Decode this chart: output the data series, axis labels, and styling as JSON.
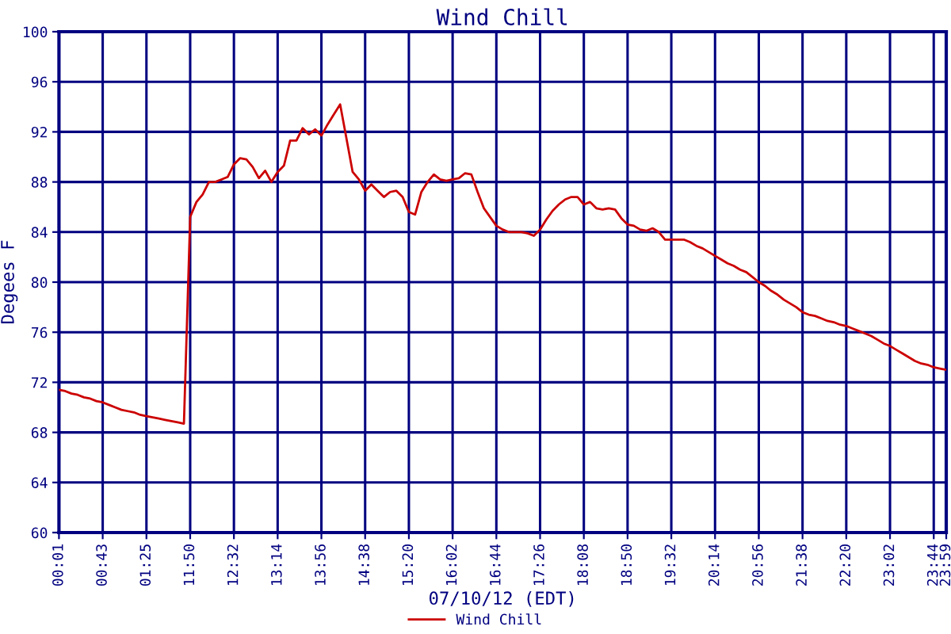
{
  "chart_data": {
    "type": "line",
    "title": "Wind Chill",
    "xlabel": "07/10/12 (EDT)",
    "ylabel": "Degees F",
    "categories": [
      "00:01",
      null,
      null,
      null,
      null,
      null,
      null,
      "00:43",
      null,
      null,
      null,
      null,
      null,
      null,
      "01:25",
      null,
      null,
      null,
      null,
      null,
      null,
      "11:50",
      null,
      null,
      null,
      null,
      null,
      null,
      "12:32",
      null,
      null,
      null,
      null,
      null,
      null,
      "13:14",
      null,
      null,
      null,
      null,
      null,
      null,
      "13:56",
      null,
      null,
      null,
      null,
      null,
      null,
      "14:38",
      null,
      null,
      null,
      null,
      null,
      null,
      "15:20",
      null,
      null,
      null,
      null,
      null,
      null,
      "16:02",
      null,
      null,
      null,
      null,
      null,
      null,
      "16:44",
      null,
      null,
      null,
      null,
      null,
      null,
      "17:26",
      null,
      null,
      null,
      null,
      null,
      null,
      "18:08",
      null,
      null,
      null,
      null,
      null,
      null,
      "18:50",
      null,
      null,
      null,
      null,
      null,
      null,
      "19:32",
      null,
      null,
      null,
      null,
      null,
      null,
      "20:14",
      null,
      null,
      null,
      null,
      null,
      null,
      "20:56",
      null,
      null,
      null,
      null,
      null,
      null,
      "21:38",
      null,
      null,
      null,
      null,
      null,
      null,
      "22:20",
      null,
      null,
      null,
      null,
      null,
      null,
      "23:02",
      null,
      null,
      null,
      null,
      null,
      null,
      "23:44",
      null,
      "23:59"
    ],
    "series": [
      {
        "name": "Wind Chill",
        "color": "#cc0000",
        "values": [
          71.4,
          71.3,
          71.1,
          71.0,
          70.8,
          70.7,
          70.5,
          70.4,
          70.2,
          70.0,
          69.8,
          69.7,
          69.6,
          69.4,
          69.3,
          69.2,
          69.1,
          69.0,
          68.9,
          68.8,
          68.7,
          85.2,
          86.4,
          87.0,
          88.0,
          88.0,
          88.2,
          88.4,
          89.4,
          89.9,
          89.8,
          89.2,
          88.3,
          88.9,
          88.0,
          88.8,
          89.3,
          91.3,
          91.3,
          92.3,
          91.8,
          92.2,
          91.7,
          92.6,
          93.4,
          94.2,
          91.5,
          88.8,
          88.2,
          87.3,
          87.8,
          87.3,
          86.8,
          87.2,
          87.3,
          86.8,
          85.6,
          85.4,
          87.2,
          88.0,
          88.6,
          88.2,
          88.1,
          88.2,
          88.3,
          88.7,
          88.6,
          87.2,
          85.9,
          85.2,
          84.5,
          84.2,
          84.0,
          84.0,
          84.0,
          83.9,
          83.7,
          84.2,
          85.0,
          85.7,
          86.2,
          86.6,
          86.8,
          86.8,
          86.2,
          86.4,
          85.9,
          85.8,
          85.9,
          85.8,
          85.1,
          84.6,
          84.5,
          84.2,
          84.1,
          84.3,
          84.0,
          83.4,
          83.4,
          83.4,
          83.4,
          83.2,
          82.9,
          82.7,
          82.4,
          82.1,
          81.8,
          81.5,
          81.3,
          81.0,
          80.8,
          80.4,
          80.0,
          79.7,
          79.3,
          79.0,
          78.6,
          78.3,
          78.0,
          77.6,
          77.4,
          77.3,
          77.1,
          76.9,
          76.8,
          76.6,
          76.5,
          76.3,
          76.1,
          75.9,
          75.7,
          75.4,
          75.1,
          74.9,
          74.6,
          74.3,
          74.0,
          73.7,
          73.5,
          73.4,
          73.2,
          73.1,
          73.0
        ]
      }
    ],
    "ylim": [
      60,
      100
    ],
    "yticks": [
      60,
      64,
      68,
      72,
      76,
      80,
      84,
      88,
      92,
      96,
      100
    ],
    "grid": true,
    "legend": "bottom",
    "line_style": "solid",
    "marker": "none"
  }
}
